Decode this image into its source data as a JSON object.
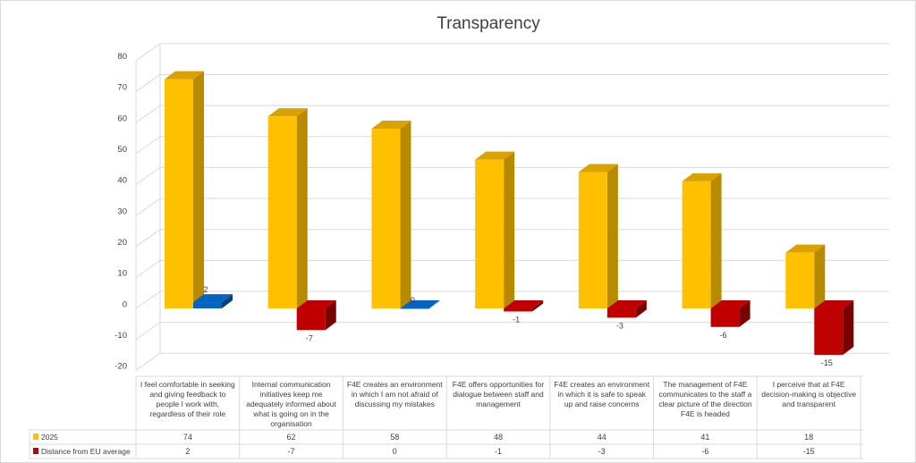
{
  "chart_data": {
    "type": "bar",
    "title": "Transparency",
    "categories": [
      "I feel comfortable in seeking and giving feedback to people I work with, regardless of their role",
      "Internal communication initiatives keep me adequately informed about what is going on in the organisation",
      "F4E creates an environment in which I am not afraid of discussing my mistakes",
      "F4E offers opportunities for dialogue between staff and management",
      "F4E creates an environment in which it is safe to speak up and raise concerns",
      "The management of F4E communicates to the staff a clear picture of the direction F4E is headed",
      "I perceive that at F4E decision-making is objective and transparent"
    ],
    "series": [
      {
        "name": "2025",
        "values": [
          74,
          62,
          58,
          48,
          44,
          41,
          18
        ]
      },
      {
        "name": "Distance from EU average",
        "values": [
          2,
          -7,
          0,
          -1,
          -3,
          -6,
          -15
        ]
      }
    ],
    "data_labels": [
      "2",
      "-7",
      "0",
      "-1",
      "-3",
      "-6",
      "-15"
    ],
    "table_values": [
      [
        "74",
        "62",
        "58",
        "48",
        "44",
        "41",
        "18"
      ],
      [
        "2",
        "-7",
        "0",
        "-1",
        "-3",
        "-6",
        "-15"
      ]
    ],
    "ylim": [
      -20,
      80
    ],
    "yticks": [
      "-20",
      "-10",
      "0",
      "10",
      "20",
      "30",
      "40",
      "50",
      "60",
      "70",
      "80"
    ],
    "legend": "data-table-below",
    "xlabel": "",
    "ylabel": ""
  },
  "colors": {
    "series_2025": "#ffc000",
    "series_2025_side": "#b88a00",
    "series_2025_top": "#d9a200",
    "positive": "#0563c1",
    "positive_side": "#033f7a",
    "negative": "#c00000",
    "negative_side": "#7a0000",
    "grid": "#d9d9d9",
    "text": "#404040"
  }
}
